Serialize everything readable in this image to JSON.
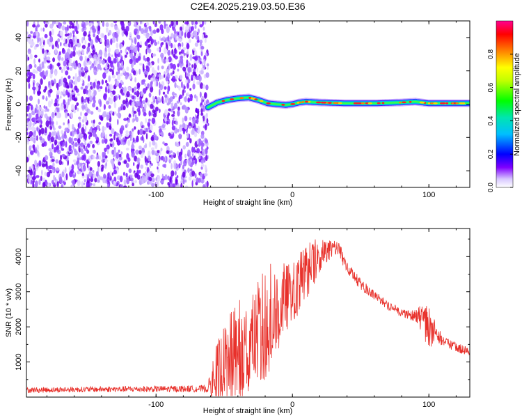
{
  "title": "C2E4.2025.219.03.50.E36",
  "chart_data": [
    {
      "type": "heatmap",
      "xlabel": "Height of straight line (km)",
      "ylabel": "Frequency (Hz)",
      "xlim": [
        -195,
        130
      ],
      "ylim": [
        -50,
        50
      ],
      "x_ticks": [
        -100,
        0,
        100
      ],
      "y_ticks": [
        -40,
        -20,
        0,
        20,
        40
      ],
      "noise_region_x": [
        -195,
        -62
      ],
      "signal_track": {
        "x": [
          -62,
          -55,
          -48,
          -40,
          -32,
          -25,
          -18,
          -12,
          -5,
          0,
          5,
          10,
          20,
          40,
          60,
          80,
          90,
          95,
          100,
          110,
          120,
          130
        ],
        "frequency": [
          -2,
          1,
          2.5,
          3.5,
          4,
          2.5,
          0.5,
          0,
          -0.5,
          0,
          1,
          1.5,
          1,
          0.5,
          0.5,
          1,
          1.5,
          1,
          0.5,
          0.5,
          0.5,
          0.5
        ]
      },
      "colorbar": {
        "label": "Normalized spectral amplitude",
        "range": [
          0,
          1
        ],
        "ticks": [
          "0.0",
          "0.2",
          "0.4",
          "0.6",
          "0.8"
        ]
      }
    },
    {
      "type": "line",
      "xlabel": "Height of straight line (km)",
      "ylabel": "SNR (10 * v/v)",
      "xlim": [
        -195,
        130
      ],
      "ylim": [
        0,
        4800
      ],
      "x_ticks": [
        -100,
        0,
        100
      ],
      "y_ticks": [
        1000,
        2000,
        3000,
        4000
      ],
      "color": "#e8302a",
      "envelope": {
        "x": [
          -195,
          -150,
          -100,
          -62,
          -58,
          -50,
          -40,
          -30,
          -20,
          -10,
          0,
          10,
          20,
          25,
          30,
          35,
          40,
          50,
          60,
          70,
          80,
          90,
          95,
          100,
          105,
          110,
          120,
          130
        ],
        "baseline": [
          200,
          220,
          230,
          240,
          500,
          700,
          1200,
          1500,
          2000,
          2500,
          2900,
          3500,
          4000,
          4100,
          4300,
          4100,
          3700,
          3200,
          2900,
          2600,
          2400,
          2300,
          2200,
          2000,
          1800,
          1600,
          1400,
          1300
        ],
        "spike_amplitude": [
          80,
          80,
          90,
          100,
          900,
          1500,
          1800,
          1500,
          2000,
          1500,
          1000,
          1000,
          600,
          400,
          300,
          300,
          200,
          200,
          150,
          150,
          150,
          200,
          500,
          900,
          300,
          200,
          150,
          150
        ]
      }
    }
  ]
}
